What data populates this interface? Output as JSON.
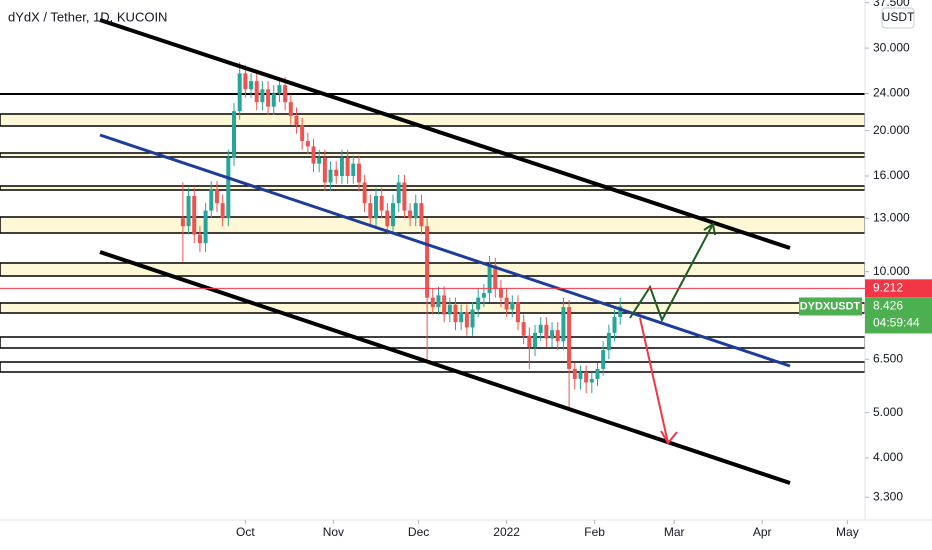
{
  "chart_data": {
    "type": "candlestick",
    "title": "dYdX / Tether, 1D, KUCOIN",
    "currency": "USDT",
    "symbol": "DYDXUSDT",
    "last_price": 8.426,
    "countdown": "04:59:44",
    "alert_price": 9.212,
    "log_scale": true,
    "up_color": "#26a69a",
    "down_color": "#ef5350",
    "alert_color": "#f23645",
    "last_color": "#4caf50",
    "categories": [
      null,
      null,
      null,
      null,
      null,
      null,
      null,
      null,
      null,
      null,
      null,
      null,
      null,
      null,
      null,
      null,
      null,
      null,
      null,
      null,
      null,
      null,
      null,
      null,
      null,
      null,
      null,
      null,
      null,
      null,
      null,
      null,
      null,
      null,
      null,
      null,
      null,
      null,
      null,
      null,
      null,
      null,
      null,
      null,
      null,
      null,
      null,
      null,
      null,
      null,
      null,
      null,
      null,
      null,
      null,
      null,
      null,
      null,
      null,
      null,
      null,
      null,
      null,
      null,
      null,
      null,
      null,
      null,
      null,
      null,
      null,
      null,
      null,
      null,
      null,
      null,
      null,
      null
    ],
    "open": [
      13.0,
      12.5,
      14.5,
      12.0,
      11.5,
      13.5,
      15.0,
      14.0,
      13.0,
      17.5,
      22.0,
      26.5,
      24.5,
      25.5,
      23.0,
      24.5,
      22.5,
      24.0,
      25.0,
      23.0,
      21.5,
      20.5,
      19.0,
      18.5,
      17.0,
      17.5,
      15.5,
      16.5,
      16.0,
      17.5,
      16.0,
      17.0,
      15.5,
      14.0,
      13.0,
      14.5,
      13.5,
      12.5,
      14.0,
      15.5,
      13.5,
      13.0,
      14.0,
      12.5,
      8.8,
      8.4,
      8.9,
      8.1,
      8.5,
      7.8,
      8.2,
      7.6,
      8.3,
      8.8,
      9.0,
      10.3,
      9.2,
      8.8,
      8.3,
      8.6,
      7.8,
      7.3,
      6.9,
      7.4,
      7.7,
      7.2,
      7.5,
      7.1,
      8.4,
      6.2,
      5.9,
      6.1,
      5.8,
      5.9,
      6.2,
      6.8,
      7.4,
      8.0
    ],
    "high": [
      15.5,
      15.1,
      15.1,
      12.5,
      14.0,
      15.6,
      15.6,
      14.6,
      18.2,
      22.9,
      28.0,
      27.6,
      26.5,
      26.5,
      25.5,
      25.5,
      25.0,
      26.0,
      26.0,
      23.9,
      22.4,
      21.3,
      19.8,
      19.2,
      18.2,
      18.2,
      17.2,
      17.2,
      18.2,
      18.2,
      17.7,
      17.7,
      16.1,
      14.6,
      15.1,
      15.1,
      14.0,
      14.6,
      16.1,
      16.1,
      14.0,
      14.6,
      14.6,
      13.0,
      9.2,
      9.3,
      9.3,
      8.8,
      8.8,
      8.5,
      8.5,
      8.6,
      9.2,
      9.4,
      10.8,
      10.7,
      9.6,
      9.2,
      8.9,
      8.9,
      8.1,
      7.6,
      7.7,
      8.0,
      8.0,
      7.8,
      7.8,
      8.8,
      8.7,
      6.4,
      6.3,
      6.3,
      6.1,
      6.4,
      7.1,
      7.7,
      8.3,
      8.8
    ],
    "low": [
      10.5,
      12.0,
      11.5,
      11.0,
      11.0,
      13.0,
      13.4,
      12.5,
      12.5,
      16.8,
      21.1,
      23.5,
      23.5,
      22.1,
      22.1,
      21.6,
      21.6,
      23.0,
      22.1,
      20.6,
      19.7,
      18.2,
      17.8,
      16.3,
      16.3,
      14.9,
      14.9,
      15.4,
      15.4,
      15.4,
      15.4,
      14.9,
      13.4,
      12.5,
      12.5,
      13.0,
      12.0,
      12.0,
      13.4,
      13.0,
      12.5,
      12.5,
      12.0,
      6.5,
      8.1,
      8.1,
      7.8,
      7.8,
      7.5,
      7.5,
      7.3,
      7.3,
      8.0,
      8.4,
      8.6,
      8.8,
      8.4,
      8.0,
      8.0,
      7.5,
      7.0,
      6.2,
      6.6,
      7.1,
      6.9,
      6.9,
      6.8,
      6.8,
      5.1,
      5.6,
      5.6,
      5.5,
      5.5,
      5.7,
      6.0,
      6.5,
      7.1,
      7.7
    ],
    "close": [
      12.5,
      14.5,
      12.0,
      11.5,
      13.5,
      15.0,
      14.0,
      13.0,
      17.5,
      22.0,
      26.5,
      24.5,
      25.5,
      23.0,
      24.5,
      22.5,
      24.0,
      25.0,
      23.0,
      21.5,
      20.5,
      19.0,
      18.5,
      17.0,
      17.5,
      15.5,
      16.5,
      16.0,
      17.5,
      16.0,
      17.0,
      15.5,
      14.0,
      13.0,
      14.5,
      13.5,
      12.5,
      14.0,
      15.5,
      13.5,
      13.0,
      14.0,
      12.5,
      8.8,
      8.4,
      8.9,
      8.1,
      8.5,
      7.8,
      8.2,
      7.6,
      8.3,
      8.8,
      9.0,
      10.3,
      9.2,
      8.8,
      8.3,
      8.6,
      7.8,
      7.3,
      6.9,
      7.4,
      7.7,
      7.2,
      7.5,
      7.1,
      8.4,
      6.2,
      5.9,
      6.1,
      5.8,
      5.9,
      6.2,
      6.8,
      7.4,
      8.0,
      8.426
    ],
    "xlim": [
      -32.2,
      120.1
    ],
    "xticks": [
      {
        "value": 11,
        "label": "Oct"
      },
      {
        "value": 26.5,
        "label": "Nov"
      },
      {
        "value": 41.5,
        "label": "Dec"
      },
      {
        "value": 57,
        "label": "2022"
      },
      {
        "value": 72.5,
        "label": "Feb"
      },
      {
        "value": 86.5,
        "label": "Mar"
      },
      {
        "value": 102,
        "label": "Apr"
      },
      {
        "value": 117,
        "label": "May"
      }
    ],
    "ylim": [
      2.95,
      38
    ],
    "yticks": [
      {
        "value": 37.5,
        "label": "37.500"
      },
      {
        "value": 30,
        "label": "30.000"
      },
      {
        "value": 24,
        "label": "24.000"
      },
      {
        "value": 20,
        "label": "20.000"
      },
      {
        "value": 16,
        "label": "16.000"
      },
      {
        "value": 13,
        "label": "13.000"
      },
      {
        "value": 10,
        "label": "10.000"
      },
      {
        "value": 6.5,
        "label": "6.500"
      },
      {
        "value": 5,
        "label": "5.000"
      },
      {
        "value": 4,
        "label": "4.000"
      },
      {
        "value": 3.3,
        "label": "3.300"
      }
    ]
  }
}
